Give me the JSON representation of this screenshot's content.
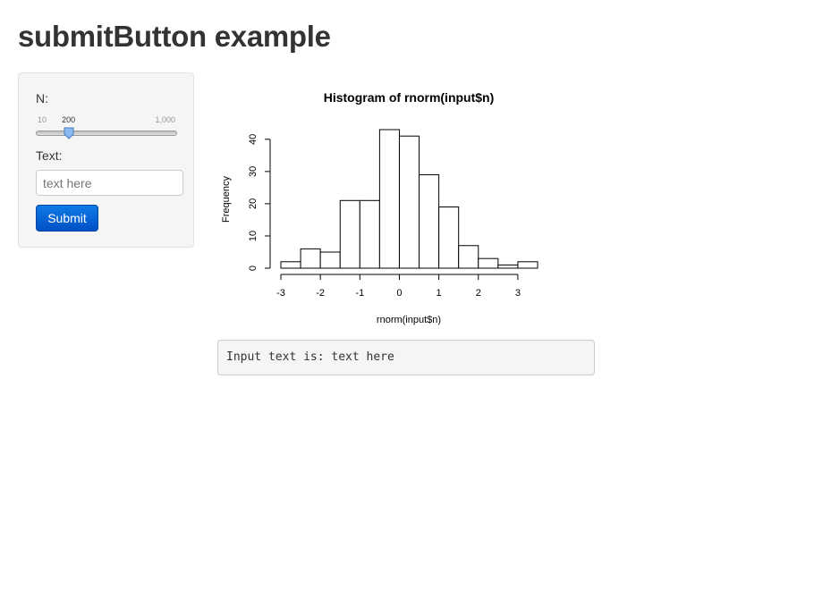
{
  "page": {
    "title": "submitButton example"
  },
  "sidebar": {
    "n_label": "N:",
    "slider": {
      "min": 10,
      "max": 1000,
      "value": 200,
      "min_label": "10",
      "max_label": "1,000",
      "value_label": "200"
    },
    "text_label": "Text:",
    "text_input": {
      "value": "",
      "placeholder": "text here"
    },
    "submit_label": "Submit"
  },
  "chart_data": {
    "type": "bar",
    "title": "Histogram of rnorm(input$n)",
    "xlabel": "rnorm(input$n)",
    "ylabel": "Frequency",
    "bin_edges": [
      -3,
      -2.5,
      -2,
      -1.5,
      -1,
      -0.5,
      0,
      0.5,
      1,
      1.5,
      2,
      2.5,
      3,
      3.5
    ],
    "values": [
      2,
      6,
      5,
      21,
      21,
      43,
      41,
      29,
      19,
      7,
      3,
      1,
      2
    ],
    "xlim": [
      -3,
      3.5
    ],
    "ylim": [
      0,
      43
    ],
    "xticks": [
      -3,
      -2,
      -1,
      0,
      1,
      2,
      3
    ],
    "yticks": [
      0,
      10,
      20,
      30,
      40
    ],
    "grid": false,
    "bar_fill": "#ffffff",
    "bar_stroke": "#000000"
  },
  "output": {
    "text": "Input text is: text here"
  },
  "colors": {
    "button_primary": "#0b6fd9",
    "panel_bg": "#f5f5f5",
    "slider_handle": "#8bb8ee"
  }
}
